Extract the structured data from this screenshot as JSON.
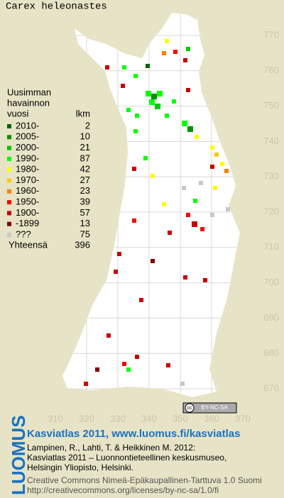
{
  "title": "Carex heleonastes",
  "legend": {
    "heading": [
      "Uusimman",
      "havainnon",
      "vuosi"
    ],
    "count_heading": "lkm",
    "rows": [
      {
        "label": "2010-",
        "color": "#006400",
        "count": 2
      },
      {
        "label": "2005-",
        "color": "#009000",
        "count": 10
      },
      {
        "label": "2000-",
        "color": "#00c800",
        "count": 21
      },
      {
        "label": "1990-",
        "color": "#00ff00",
        "count": 87
      },
      {
        "label": "1980-",
        "color": "#ffff00",
        "count": 42
      },
      {
        "label": "1970-",
        "color": "#ffc800",
        "count": 27
      },
      {
        "label": "1960-",
        "color": "#ff8000",
        "count": 23
      },
      {
        "label": "1950-",
        "color": "#ff0000",
        "count": 39
      },
      {
        "label": "1900-",
        "color": "#c80000",
        "count": 57
      },
      {
        "label": "-1899",
        "color": "#800000",
        "count": 13
      },
      {
        "label": "???",
        "color": "#c8c8c8",
        "count": 75
      }
    ],
    "total_label": "Yhteensä",
    "total": 396
  },
  "map": {
    "xticks": [
      310,
      320,
      330,
      340,
      350,
      360,
      370
    ],
    "yticks": [
      670,
      680,
      690,
      700,
      710,
      720,
      730,
      740,
      750,
      760,
      770
    ]
  },
  "badge": {
    "cc": "cc",
    "license": "BY-NC-SA"
  },
  "footer": {
    "brand": "LUOMUS",
    "link": "Kasviatlas 2011, www.luomus.fi/kasviatlas",
    "citation": [
      "Lampinen, R., Lahti, T. & Heikkinen M. 2012:",
      "Kasviatlas 2011 – Luonnontieteellinen keskusmuseo,",
      "Helsingin Yliopisto, Helsinki."
    ],
    "license": [
      "Creative Commons Nimeä-Epäkaupallinen-Tarttuva 1.0 Suomi",
      "http://creativecommons.org/licenses/by-nc-sa/1.0/fi"
    ]
  }
}
